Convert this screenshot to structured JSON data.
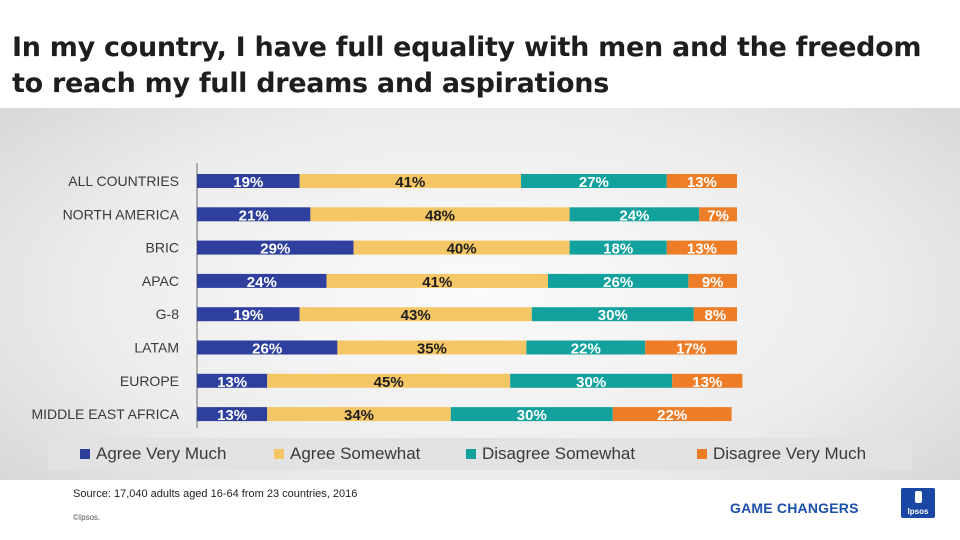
{
  "title": "In my country, I have full equality with men and the freedom to reach my full dreams and aspirations",
  "chart_data": {
    "type": "bar",
    "stacked": true,
    "orientation": "horizontal",
    "value_suffix": "%",
    "categories": [
      "ALL COUNTRIES",
      "NORTH AMERICA",
      "BRIC",
      "APAC",
      "G-8",
      "LATAM",
      "EUROPE",
      "MIDDLE EAST AFRICA"
    ],
    "series": [
      {
        "name": "Agree Very Much",
        "color": "#2e3f9e",
        "values": [
          19,
          21,
          29,
          24,
          19,
          26,
          13,
          13
        ]
      },
      {
        "name": "Agree Somewhat",
        "color": "#f5c665",
        "values": [
          41,
          48,
          40,
          41,
          43,
          35,
          45,
          34
        ]
      },
      {
        "name": "Disagree Somewhat",
        "color": "#13a19e",
        "values": [
          27,
          24,
          18,
          26,
          30,
          22,
          30,
          30
        ]
      },
      {
        "name": "Disagree Very Much",
        "color": "#ee7d28",
        "values": [
          13,
          7,
          13,
          9,
          8,
          17,
          13,
          22
        ]
      }
    ],
    "legend_position": "bottom",
    "grid": false
  },
  "footer": {
    "source": "Source: 17,040 adults aged 16-64 from 23 countries, 2016",
    "copyright": "©Ipsos.",
    "brand": "GAME CHANGERS",
    "logo_text": "Ipsos"
  }
}
